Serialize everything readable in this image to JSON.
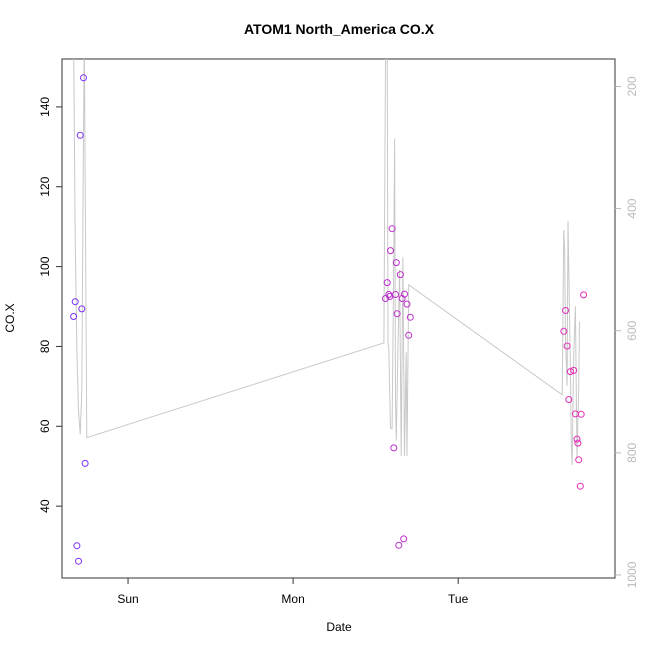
{
  "chart_data": {
    "type": "scatter",
    "title": "ATOM1 North_America CO.X",
    "xlabel": "Date",
    "ylabel": "CO.X",
    "x_ticks": [
      {
        "label": "Sun",
        "day": 1
      },
      {
        "label": "Mon",
        "day": 2
      },
      {
        "label": "Tue",
        "day": 3
      }
    ],
    "xlim": [
      0.6,
      3.95
    ],
    "ylim": [
      22,
      152
    ],
    "y_ticks": [
      40,
      60,
      80,
      100,
      120,
      140
    ],
    "y2lim": [
      1005,
      155
    ],
    "y2_ticks": [
      200,
      400,
      600,
      800,
      1000
    ],
    "grid": false,
    "colors": {
      "scatter_start": "#7b2ff7",
      "scatter_end": "#e62eb4",
      "line": "#c8c8c8"
    },
    "series": [
      {
        "kind": "points",
        "axis": "left",
        "points": [
          {
            "x": 0.67,
            "y": 87.5
          },
          {
            "x": 0.68,
            "y": 91.2
          },
          {
            "x": 0.69,
            "y": 30.1
          },
          {
            "x": 0.7,
            "y": 26.2
          },
          {
            "x": 0.71,
            "y": 132.9
          },
          {
            "x": 0.72,
            "y": 89.4
          },
          {
            "x": 0.73,
            "y": 147.3
          },
          {
            "x": 0.74,
            "y": 50.7
          },
          {
            "x": 2.56,
            "y": 92.0
          },
          {
            "x": 2.57,
            "y": 96.0
          },
          {
            "x": 2.58,
            "y": 93.0
          },
          {
            "x": 2.585,
            "y": 92.5
          },
          {
            "x": 2.59,
            "y": 104.0
          },
          {
            "x": 2.6,
            "y": 109.5
          },
          {
            "x": 2.61,
            "y": 54.6
          },
          {
            "x": 2.62,
            "y": 93.0
          },
          {
            "x": 2.625,
            "y": 101.0
          },
          {
            "x": 2.63,
            "y": 88.2
          },
          {
            "x": 2.64,
            "y": 30.2
          },
          {
            "x": 2.65,
            "y": 98.0
          },
          {
            "x": 2.66,
            "y": 92.0
          },
          {
            "x": 2.67,
            "y": 31.8
          },
          {
            "x": 2.675,
            "y": 93.1
          },
          {
            "x": 2.69,
            "y": 90.6
          },
          {
            "x": 2.7,
            "y": 82.8
          },
          {
            "x": 2.71,
            "y": 87.3
          },
          {
            "x": 3.64,
            "y": 83.8
          },
          {
            "x": 3.65,
            "y": 89.0
          },
          {
            "x": 3.66,
            "y": 80.1
          },
          {
            "x": 3.67,
            "y": 66.7
          },
          {
            "x": 3.68,
            "y": 73.7
          },
          {
            "x": 3.7,
            "y": 74.0
          },
          {
            "x": 3.71,
            "y": 63.1
          },
          {
            "x": 3.72,
            "y": 56.8
          },
          {
            "x": 3.725,
            "y": 55.8
          },
          {
            "x": 3.73,
            "y": 51.6
          },
          {
            "x": 3.74,
            "y": 45.0
          },
          {
            "x": 3.745,
            "y": 63.0
          },
          {
            "x": 3.76,
            "y": 92.9
          }
        ]
      },
      {
        "kind": "line",
        "axis": "right",
        "points": [
          {
            "x": 0.67,
            "y": 120
          },
          {
            "x": 0.68,
            "y": 450
          },
          {
            "x": 0.69,
            "y": 635
          },
          {
            "x": 0.7,
            "y": 730
          },
          {
            "x": 0.71,
            "y": 770
          },
          {
            "x": 0.72,
            "y": 700
          },
          {
            "x": 0.73,
            "y": 280
          },
          {
            "x": 0.735,
            "y": 120
          },
          {
            "x": 0.75,
            "y": 775
          },
          {
            "x": 2.55,
            "y": 620
          },
          {
            "x": 2.56,
            "y": 150
          },
          {
            "x": 2.57,
            "y": 120
          },
          {
            "x": 2.575,
            "y": 620
          },
          {
            "x": 2.58,
            "y": 630
          },
          {
            "x": 2.59,
            "y": 760
          },
          {
            "x": 2.6,
            "y": 760
          },
          {
            "x": 2.61,
            "y": 480
          },
          {
            "x": 2.615,
            "y": 285
          },
          {
            "x": 2.62,
            "y": 715
          },
          {
            "x": 2.625,
            "y": 780
          },
          {
            "x": 2.635,
            "y": 630
          },
          {
            "x": 2.645,
            "y": 500
          },
          {
            "x": 2.655,
            "y": 805
          },
          {
            "x": 2.665,
            "y": 480
          },
          {
            "x": 2.675,
            "y": 805
          },
          {
            "x": 2.685,
            "y": 635
          },
          {
            "x": 2.69,
            "y": 805
          },
          {
            "x": 2.7,
            "y": 525
          },
          {
            "x": 3.63,
            "y": 705
          },
          {
            "x": 3.64,
            "y": 435
          },
          {
            "x": 3.645,
            "y": 470
          },
          {
            "x": 3.65,
            "y": 610
          },
          {
            "x": 3.66,
            "y": 690
          },
          {
            "x": 3.665,
            "y": 420
          },
          {
            "x": 3.67,
            "y": 500
          },
          {
            "x": 3.68,
            "y": 660
          },
          {
            "x": 3.685,
            "y": 785
          },
          {
            "x": 3.69,
            "y": 820
          },
          {
            "x": 3.7,
            "y": 640
          },
          {
            "x": 3.71,
            "y": 560
          },
          {
            "x": 3.72,
            "y": 810
          },
          {
            "x": 3.73,
            "y": 695
          },
          {
            "x": 3.735,
            "y": 585
          }
        ]
      }
    ]
  }
}
